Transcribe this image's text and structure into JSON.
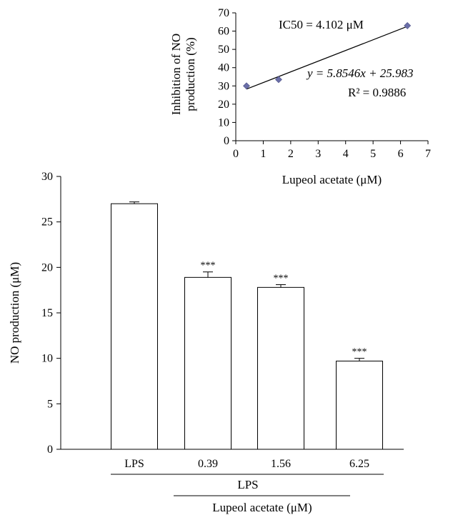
{
  "chart_data": [
    {
      "type": "scatter",
      "xlabel": "Lupeol acetate (μM)",
      "ylabel_lines": [
        "Inhibition of NO",
        "production (%)"
      ],
      "xlim": [
        0,
        7
      ],
      "ylim": [
        0,
        70
      ],
      "x_ticks": [
        0,
        1,
        2,
        3,
        4,
        5,
        6,
        7
      ],
      "y_ticks": [
        0,
        10,
        20,
        30,
        40,
        50,
        60,
        70
      ],
      "series": [
        {
          "x": [
            0.39,
            1.56,
            6.25
          ],
          "y": [
            30,
            33.5,
            63
          ],
          "marker": "diamond",
          "color": "#6b6fa8"
        }
      ],
      "trendline": {
        "slope": 5.8546,
        "intercept": 25.983,
        "x_range": [
          0.39,
          6.25
        ]
      },
      "annotations": {
        "ic50": "IC50 = 4.102 μM",
        "equation": "y = 5.8546x + 25.983",
        "r2": "R² = 0.9886"
      }
    },
    {
      "type": "bar",
      "ylabel": "NO production (μM)",
      "ylim": [
        0,
        30
      ],
      "y_ticks": [
        0,
        5,
        10,
        15,
        20,
        25,
        30
      ],
      "categories": [
        "LPS",
        "0.39",
        "1.56",
        "6.25"
      ],
      "values": [
        27.0,
        18.9,
        17.8,
        9.7
      ],
      "errors": [
        0.2,
        0.6,
        0.3,
        0.3
      ],
      "significance": [
        "",
        "***",
        "***",
        "***"
      ],
      "bar_fill": "#ffffff",
      "group_labels": {
        "level1": "LPS",
        "level2": "Lupeol acetate (μM)"
      }
    }
  ]
}
